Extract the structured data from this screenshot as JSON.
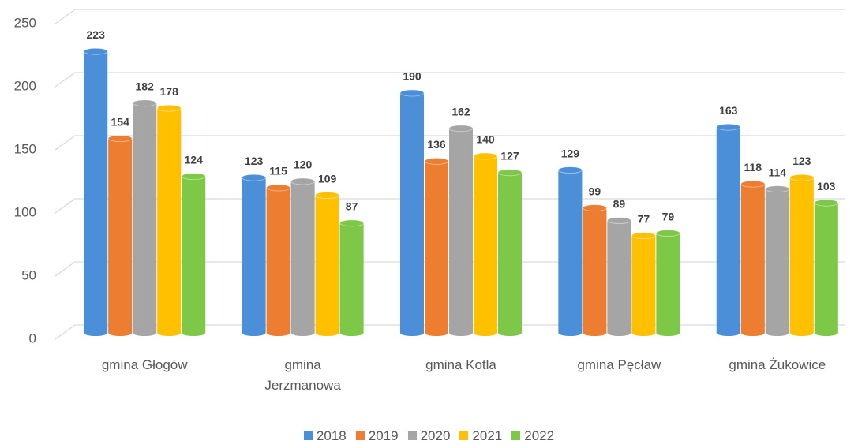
{
  "chart_data": {
    "type": "bar3d",
    "categories": [
      "gmina Głogów",
      "gmina Jerzmanowa",
      "gmina Kotla",
      "gmina Pęcław",
      "gmina Żukowice"
    ],
    "series": [
      {
        "name": "2018",
        "color": "#4a8fd8",
        "values": [
          223,
          123,
          190,
          129,
          163
        ]
      },
      {
        "name": "2019",
        "color": "#ed7d31",
        "values": [
          154,
          115,
          136,
          99,
          118
        ]
      },
      {
        "name": "2020",
        "color": "#a5a5a5",
        "values": [
          182,
          120,
          162,
          89,
          114
        ]
      },
      {
        "name": "2021",
        "color": "#ffc000",
        "values": [
          178,
          109,
          140,
          77,
          123
        ]
      },
      {
        "name": "2022",
        "color": "#7ec848",
        "values": [
          124,
          87,
          127,
          79,
          103
        ]
      }
    ],
    "ylim": [
      0,
      250
    ],
    "yticks": [
      0,
      50,
      100,
      150,
      200,
      250
    ],
    "grid": true,
    "legend": "bottom"
  }
}
